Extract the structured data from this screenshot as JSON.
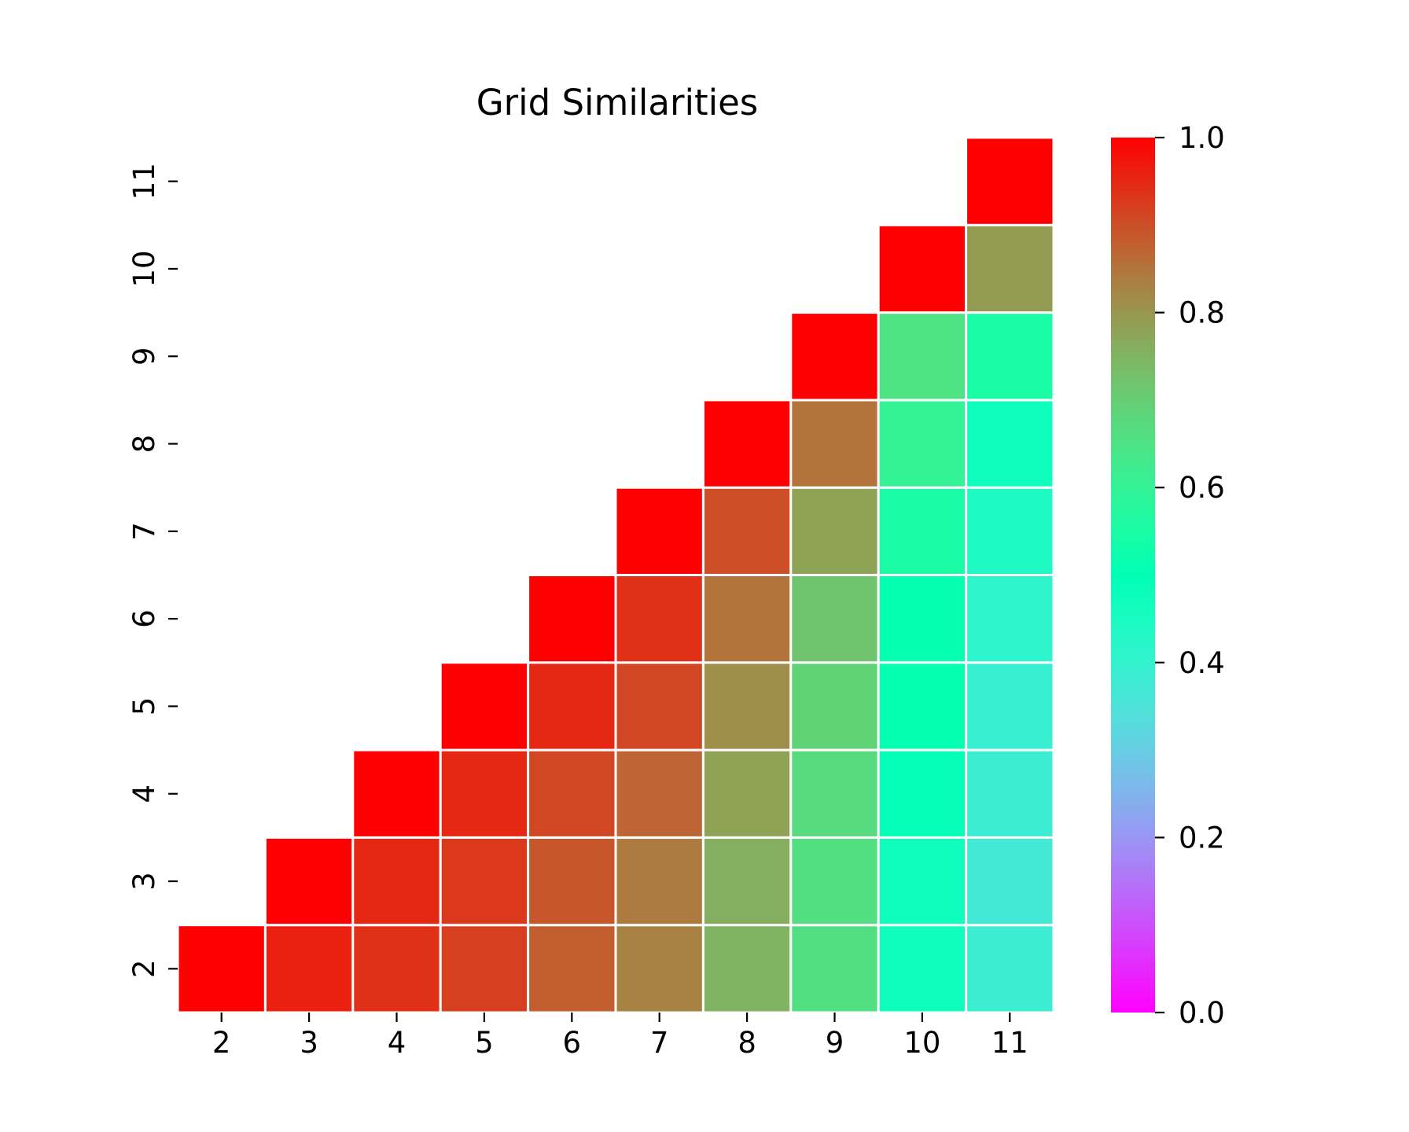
{
  "chart_data": {
    "type": "heatmap",
    "title": "Grid Similarities",
    "xlabel": "",
    "ylabel": "",
    "x_categories": [
      "2",
      "3",
      "4",
      "5",
      "6",
      "7",
      "8",
      "9",
      "10",
      "11"
    ],
    "y_categories": [
      "2",
      "3",
      "4",
      "5",
      "6",
      "7",
      "8",
      "9",
      "10",
      "11"
    ],
    "mask": "upper-left triangle (only cells with column >= row are shown)",
    "colormap": "rainbow",
    "colorbar": {
      "min": 0.0,
      "max": 1.0,
      "ticks": [
        "0.0",
        "0.2",
        "0.4",
        "0.6",
        "0.8",
        "1.0"
      ]
    },
    "grid": false,
    "cells": [
      {
        "row": "2",
        "values": [
          1.0,
          0.96,
          0.94,
          0.92,
          0.88,
          0.83,
          0.75,
          0.66,
          0.47,
          0.38
        ]
      },
      {
        "row": "3",
        "values": [
          null,
          1.0,
          0.95,
          0.93,
          0.89,
          0.84,
          0.76,
          0.66,
          0.47,
          0.37
        ]
      },
      {
        "row": "4",
        "values": [
          null,
          null,
          1.0,
          0.95,
          0.91,
          0.87,
          0.78,
          0.67,
          0.49,
          0.38
        ]
      },
      {
        "row": "5",
        "values": [
          null,
          null,
          null,
          1.0,
          0.95,
          0.91,
          0.81,
          0.69,
          0.51,
          0.39
        ]
      },
      {
        "row": "6",
        "values": [
          null,
          null,
          null,
          null,
          1.0,
          0.94,
          0.85,
          0.72,
          0.51,
          0.41
        ]
      },
      {
        "row": "7",
        "values": [
          null,
          null,
          null,
          null,
          null,
          1.0,
          0.9,
          0.78,
          0.55,
          0.44
        ]
      },
      {
        "row": "8",
        "values": [
          null,
          null,
          null,
          null,
          null,
          null,
          1.0,
          0.85,
          0.6,
          0.47
        ]
      },
      {
        "row": "9",
        "values": [
          null,
          null,
          null,
          null,
          null,
          null,
          null,
          1.0,
          0.65,
          0.55
        ]
      },
      {
        "row": "10",
        "values": [
          null,
          null,
          null,
          null,
          null,
          null,
          null,
          null,
          1.0,
          0.79
        ]
      },
      {
        "row": "11",
        "values": [
          null,
          null,
          null,
          null,
          null,
          null,
          null,
          null,
          null,
          1.0
        ]
      }
    ]
  }
}
